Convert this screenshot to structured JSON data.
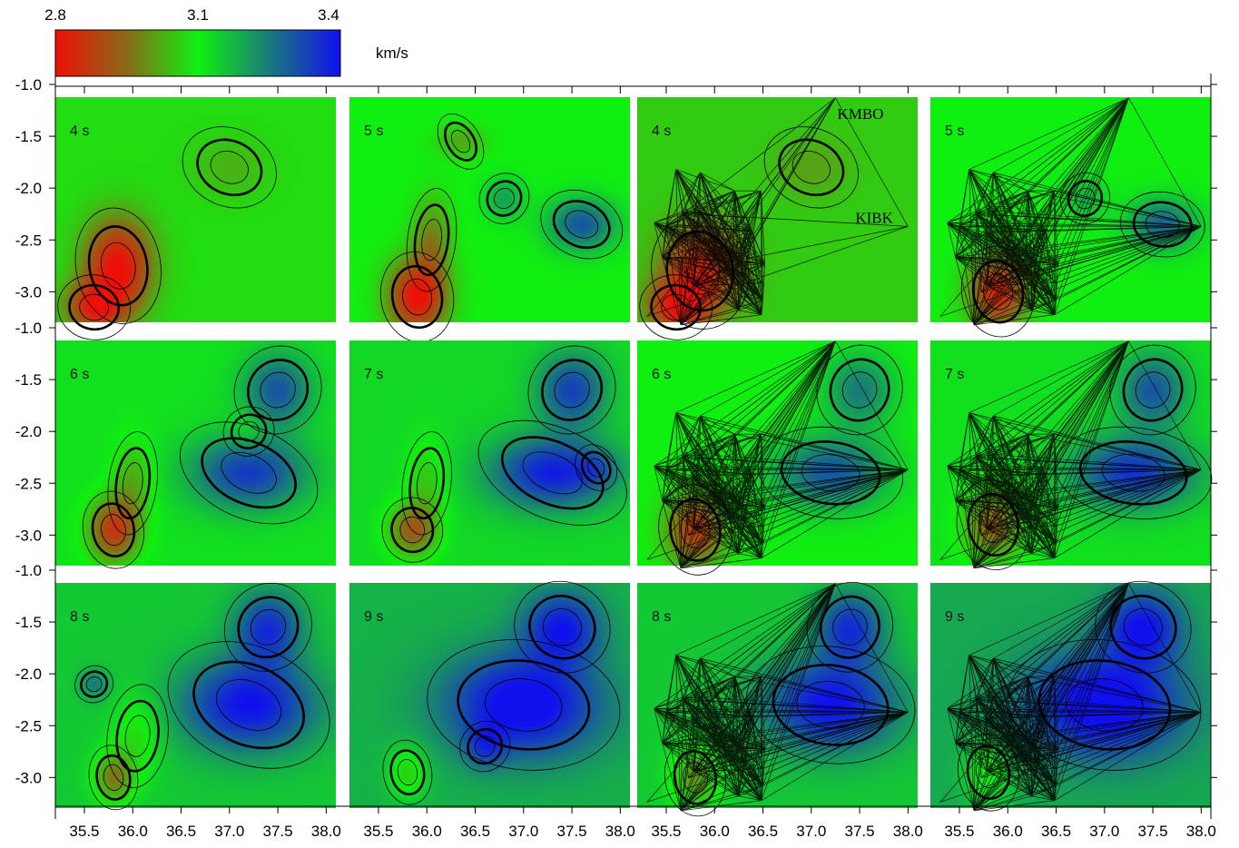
{
  "chart_data": {
    "type": "heatmap",
    "description_unit": "km/s",
    "colorbar": {
      "ticks": [
        "2.8",
        "3.1",
        "3.4"
      ],
      "range": [
        2.8,
        3.4
      ],
      "unit": "km/s",
      "colors": [
        "#e8120c",
        "#7a6a1a",
        "#10f010",
        "#1a7a6a",
        "#1212e8"
      ]
    },
    "x_axis": {
      "range": [
        35.2,
        38.1
      ],
      "ticks": [
        "35.5",
        "36.0",
        "36.5",
        "37.0",
        "37.5",
        "38.0"
      ],
      "tick_values": [
        35.5,
        36.0,
        36.5,
        37.0,
        37.5,
        38.0
      ]
    },
    "y_axis": {
      "range": [
        -3.4,
        -1.0
      ],
      "ticks": [
        "-1.0",
        "-1.5",
        "-2.0",
        "-2.5",
        "-3.0"
      ],
      "tick_values": [
        -1.0,
        -1.5,
        -2.0,
        -2.5,
        -3.0
      ]
    },
    "stations": [
      {
        "name": "KMBO",
        "lon": 37.25,
        "lat": -1.13
      },
      {
        "name": "KIBK",
        "lon": 38.0,
        "lat": -2.37
      }
    ],
    "panels": [
      {
        "label": "4 s",
        "row": 0,
        "col": 0,
        "rays": false,
        "base": 3.08,
        "anomalies": [
          [
            35.85,
            -2.75,
            -0.28,
            0.35,
            0.45
          ],
          [
            35.6,
            -3.15,
            -0.22,
            0.3,
            0.25
          ],
          [
            37.0,
            -1.8,
            -0.05,
            0.4,
            0.3
          ]
        ]
      },
      {
        "label": "5 s",
        "row": 0,
        "col": 1,
        "rays": false,
        "base": 3.1,
        "anomalies": [
          [
            35.9,
            -3.05,
            -0.3,
            0.3,
            0.35
          ],
          [
            36.05,
            -2.5,
            -0.12,
            0.2,
            0.4
          ],
          [
            37.6,
            -2.35,
            0.2,
            0.35,
            0.25
          ],
          [
            36.8,
            -2.1,
            0.1,
            0.2,
            0.2
          ],
          [
            36.35,
            -1.55,
            -0.08,
            0.25,
            0.15
          ]
        ]
      },
      {
        "label": "4 s",
        "row": 0,
        "col": 2,
        "rays": true,
        "base": 3.06,
        "anomalies": [
          [
            35.85,
            -2.8,
            -0.22,
            0.4,
            0.45
          ],
          [
            35.6,
            -3.15,
            -0.2,
            0.3,
            0.25
          ],
          [
            37.0,
            -1.8,
            -0.05,
            0.4,
            0.3
          ]
        ]
      },
      {
        "label": "5 s",
        "row": 0,
        "col": 3,
        "rays": true,
        "base": 3.1,
        "anomalies": [
          [
            35.9,
            -3.0,
            -0.26,
            0.3,
            0.35
          ],
          [
            37.6,
            -2.35,
            0.18,
            0.35,
            0.25
          ],
          [
            36.8,
            -2.1,
            0.08,
            0.2,
            0.2
          ]
        ]
      },
      {
        "label": "6 s",
        "row": 1,
        "col": 0,
        "rays": false,
        "base": 3.12,
        "anomalies": [
          [
            35.8,
            -2.95,
            -0.25,
            0.25,
            0.3
          ],
          [
            36.0,
            -2.5,
            -0.1,
            0.2,
            0.4
          ],
          [
            37.2,
            -2.4,
            0.22,
            0.6,
            0.35
          ],
          [
            37.5,
            -1.6,
            0.18,
            0.35,
            0.35
          ],
          [
            37.2,
            -2.0,
            -0.05,
            0.2,
            0.2
          ]
        ]
      },
      {
        "label": "7 s",
        "row": 1,
        "col": 1,
        "rays": false,
        "base": 3.13,
        "anomalies": [
          [
            35.85,
            -2.95,
            -0.2,
            0.25,
            0.25
          ],
          [
            36.0,
            -2.5,
            -0.08,
            0.2,
            0.4
          ],
          [
            37.3,
            -2.4,
            0.25,
            0.65,
            0.35
          ],
          [
            37.5,
            -1.6,
            0.2,
            0.35,
            0.35
          ],
          [
            37.75,
            -2.35,
            0.06,
            0.2,
            0.15
          ]
        ]
      },
      {
        "label": "6 s",
        "row": 1,
        "col": 2,
        "rays": true,
        "base": 3.1,
        "anomalies": [
          [
            35.8,
            -2.95,
            -0.22,
            0.3,
            0.35
          ],
          [
            37.2,
            -2.4,
            0.2,
            0.6,
            0.35
          ],
          [
            37.5,
            -1.6,
            0.15,
            0.35,
            0.35
          ]
        ]
      },
      {
        "label": "7 s",
        "row": 1,
        "col": 3,
        "rays": true,
        "base": 3.12,
        "anomalies": [
          [
            35.85,
            -2.9,
            -0.18,
            0.3,
            0.35
          ],
          [
            37.3,
            -2.4,
            0.23,
            0.65,
            0.35
          ],
          [
            37.5,
            -1.6,
            0.18,
            0.35,
            0.35
          ]
        ]
      },
      {
        "label": "8 s",
        "row": 2,
        "col": 0,
        "rays": false,
        "base": 3.15,
        "anomalies": [
          [
            35.8,
            -3.0,
            -0.18,
            0.2,
            0.25
          ],
          [
            36.05,
            -2.6,
            -0.08,
            0.25,
            0.4
          ],
          [
            37.2,
            -2.3,
            0.25,
            0.7,
            0.45
          ],
          [
            37.4,
            -1.55,
            0.2,
            0.35,
            0.35
          ],
          [
            35.6,
            -2.1,
            0.1,
            0.15,
            0.15
          ]
        ]
      },
      {
        "label": "9 s",
        "row": 2,
        "col": 1,
        "rays": false,
        "base": 3.18,
        "anomalies": [
          [
            35.8,
            -2.95,
            -0.12,
            0.2,
            0.25
          ],
          [
            37.0,
            -2.3,
            0.25,
            0.8,
            0.5
          ],
          [
            37.4,
            -1.55,
            0.2,
            0.4,
            0.35
          ],
          [
            36.6,
            -2.7,
            0.1,
            0.2,
            0.2
          ]
        ]
      },
      {
        "label": "8 s",
        "row": 2,
        "col": 2,
        "rays": true,
        "base": 3.15,
        "anomalies": [
          [
            35.8,
            -3.0,
            -0.15,
            0.25,
            0.3
          ],
          [
            37.2,
            -2.3,
            0.25,
            0.7,
            0.45
          ],
          [
            37.4,
            -1.55,
            0.2,
            0.35,
            0.35
          ]
        ]
      },
      {
        "label": "9 s",
        "row": 2,
        "col": 3,
        "rays": true,
        "base": 3.19,
        "anomalies": [
          [
            35.8,
            -2.95,
            -0.1,
            0.25,
            0.3
          ],
          [
            37.0,
            -2.3,
            0.25,
            0.8,
            0.5
          ],
          [
            37.4,
            -1.55,
            0.2,
            0.4,
            0.35
          ]
        ]
      }
    ]
  }
}
